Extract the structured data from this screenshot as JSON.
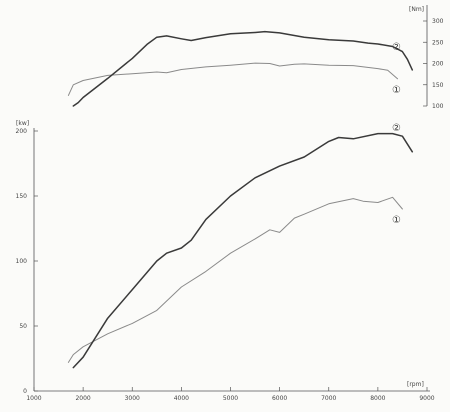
{
  "chart_data": [
    {
      "type": "line",
      "panel": "torque",
      "unit_label": "[Nm]",
      "y_axis_side": "right",
      "ylim": [
        100,
        300
      ],
      "y_ticks": [
        "100",
        "150",
        "200",
        "250",
        "300"
      ],
      "xlim": [
        1000,
        9000
      ],
      "grid": false,
      "series": [
        {
          "name": "①",
          "x": [
            1700,
            1800,
            2000,
            2500,
            3000,
            3500,
            3700,
            4000,
            4500,
            5000,
            5500,
            5800,
            6000,
            6300,
            6500,
            7000,
            7500,
            8000,
            8200,
            8400
          ],
          "values": [
            125,
            150,
            160,
            172,
            176,
            180,
            178,
            186,
            192,
            196,
            201,
            200,
            194,
            198,
            199,
            196,
            195,
            188,
            184,
            164
          ]
        },
        {
          "name": "②",
          "x": [
            1800,
            1900,
            2000,
            2500,
            3000,
            3300,
            3500,
            3700,
            4000,
            4200,
            4500,
            5000,
            5500,
            5700,
            6000,
            6500,
            7000,
            7500,
            7800,
            8000,
            8300,
            8500,
            8600,
            8700
          ],
          "values": [
            100,
            108,
            120,
            165,
            212,
            245,
            262,
            265,
            258,
            254,
            261,
            270,
            273,
            275,
            272,
            262,
            256,
            253,
            248,
            246,
            240,
            228,
            210,
            185
          ]
        }
      ]
    },
    {
      "type": "line",
      "panel": "power",
      "unit_label": "[kw]",
      "x_unit_label": "[rpm]",
      "y_axis_side": "left",
      "xlim": [
        1000,
        9000
      ],
      "ylim": [
        0,
        200
      ],
      "x_ticks": [
        "1000",
        "2000",
        "3000",
        "4000",
        "5000",
        "6000",
        "7000",
        "8000",
        "9000"
      ],
      "y_ticks": [
        "0",
        "50",
        "100",
        "150",
        "200"
      ],
      "grid": false,
      "series": [
        {
          "name": "①",
          "x": [
            1700,
            1800,
            2000,
            2500,
            3000,
            3500,
            4000,
            4500,
            5000,
            5500,
            5800,
            6000,
            6300,
            6500,
            7000,
            7500,
            7700,
            8000,
            8300,
            8500
          ],
          "values": [
            22,
            28,
            34,
            44,
            52,
            62,
            80,
            92,
            106,
            117,
            124,
            122,
            133,
            136,
            144,
            148,
            146,
            145,
            149,
            140
          ]
        },
        {
          "name": "②",
          "x": [
            1800,
            2000,
            2500,
            3000,
            3500,
            3700,
            4000,
            4200,
            4500,
            5000,
            5500,
            6000,
            6500,
            7000,
            7200,
            7500,
            8000,
            8300,
            8500,
            8700
          ],
          "values": [
            18,
            26,
            56,
            78,
            100,
            106,
            110,
            116,
            132,
            150,
            164,
            173,
            180,
            192,
            195,
            194,
            198,
            198,
            196,
            184
          ]
        }
      ]
    }
  ]
}
